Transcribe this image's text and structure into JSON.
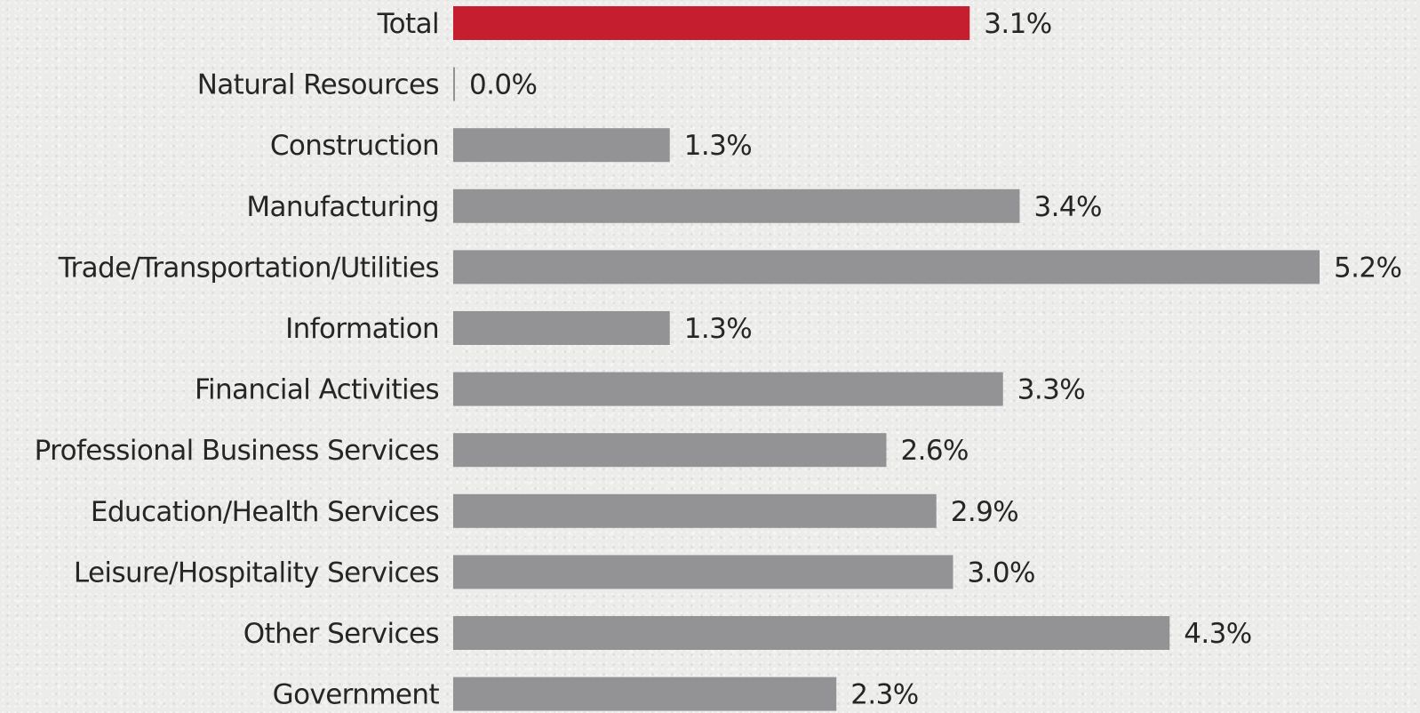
{
  "chart_data": {
    "type": "bar",
    "orientation": "horizontal",
    "categories": [
      "Total",
      "Natural Resources",
      "Construction",
      "Manufacturing",
      "Trade/Transportation/Utilities",
      "Information",
      "Financial Activities",
      "Professional Business Services",
      "Education/Health Services",
      "Leisure/Hospitality Services",
      "Other Services",
      "Government"
    ],
    "values": [
      3.1,
      0.0,
      1.3,
      3.4,
      5.2,
      1.3,
      3.3,
      2.6,
      2.9,
      3.0,
      4.3,
      2.3
    ],
    "value_labels": [
      "3.1%",
      "0.0%",
      "1.3%",
      "3.4%",
      "5.2%",
      "1.3%",
      "3.3%",
      "2.6%",
      "2.9%",
      "3.0%",
      "4.3%",
      "2.3%"
    ],
    "highlight_category": "Total",
    "colors": {
      "highlight": "#c41e2f",
      "bar": "#939396",
      "text": "#262626"
    },
    "xlim": [
      0,
      5.2
    ],
    "grid": false,
    "title": "",
    "xlabel": "",
    "ylabel": ""
  }
}
